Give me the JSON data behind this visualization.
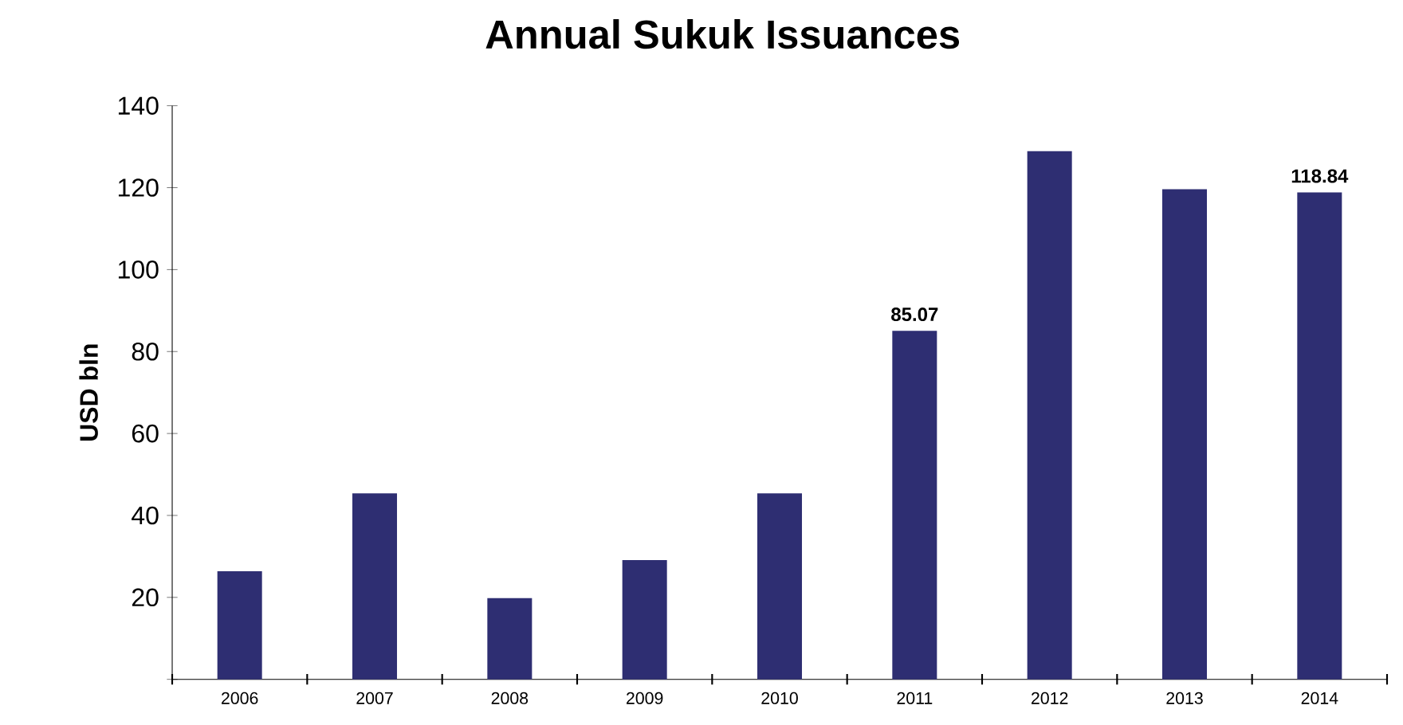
{
  "chart_data": {
    "type": "bar",
    "title": "Annual Sukuk Issuances",
    "ylabel": "USD bln",
    "categories": [
      "2006",
      "2007",
      "2008",
      "2009",
      "2010",
      "2011",
      "2012",
      "2013",
      "2014"
    ],
    "values": [
      26.4,
      45.4,
      19.8,
      29.1,
      45.4,
      85.07,
      128.9,
      119.6,
      118.84
    ],
    "value_labels": [
      null,
      null,
      null,
      null,
      null,
      "85.07",
      null,
      null,
      "118.84"
    ],
    "color": "#2e2e72",
    "ylim": [
      0,
      140
    ],
    "yticks": [
      {
        "value": 0,
        "label": null
      },
      20,
      40,
      60,
      80,
      100,
      120,
      140
    ],
    "grid": false
  }
}
